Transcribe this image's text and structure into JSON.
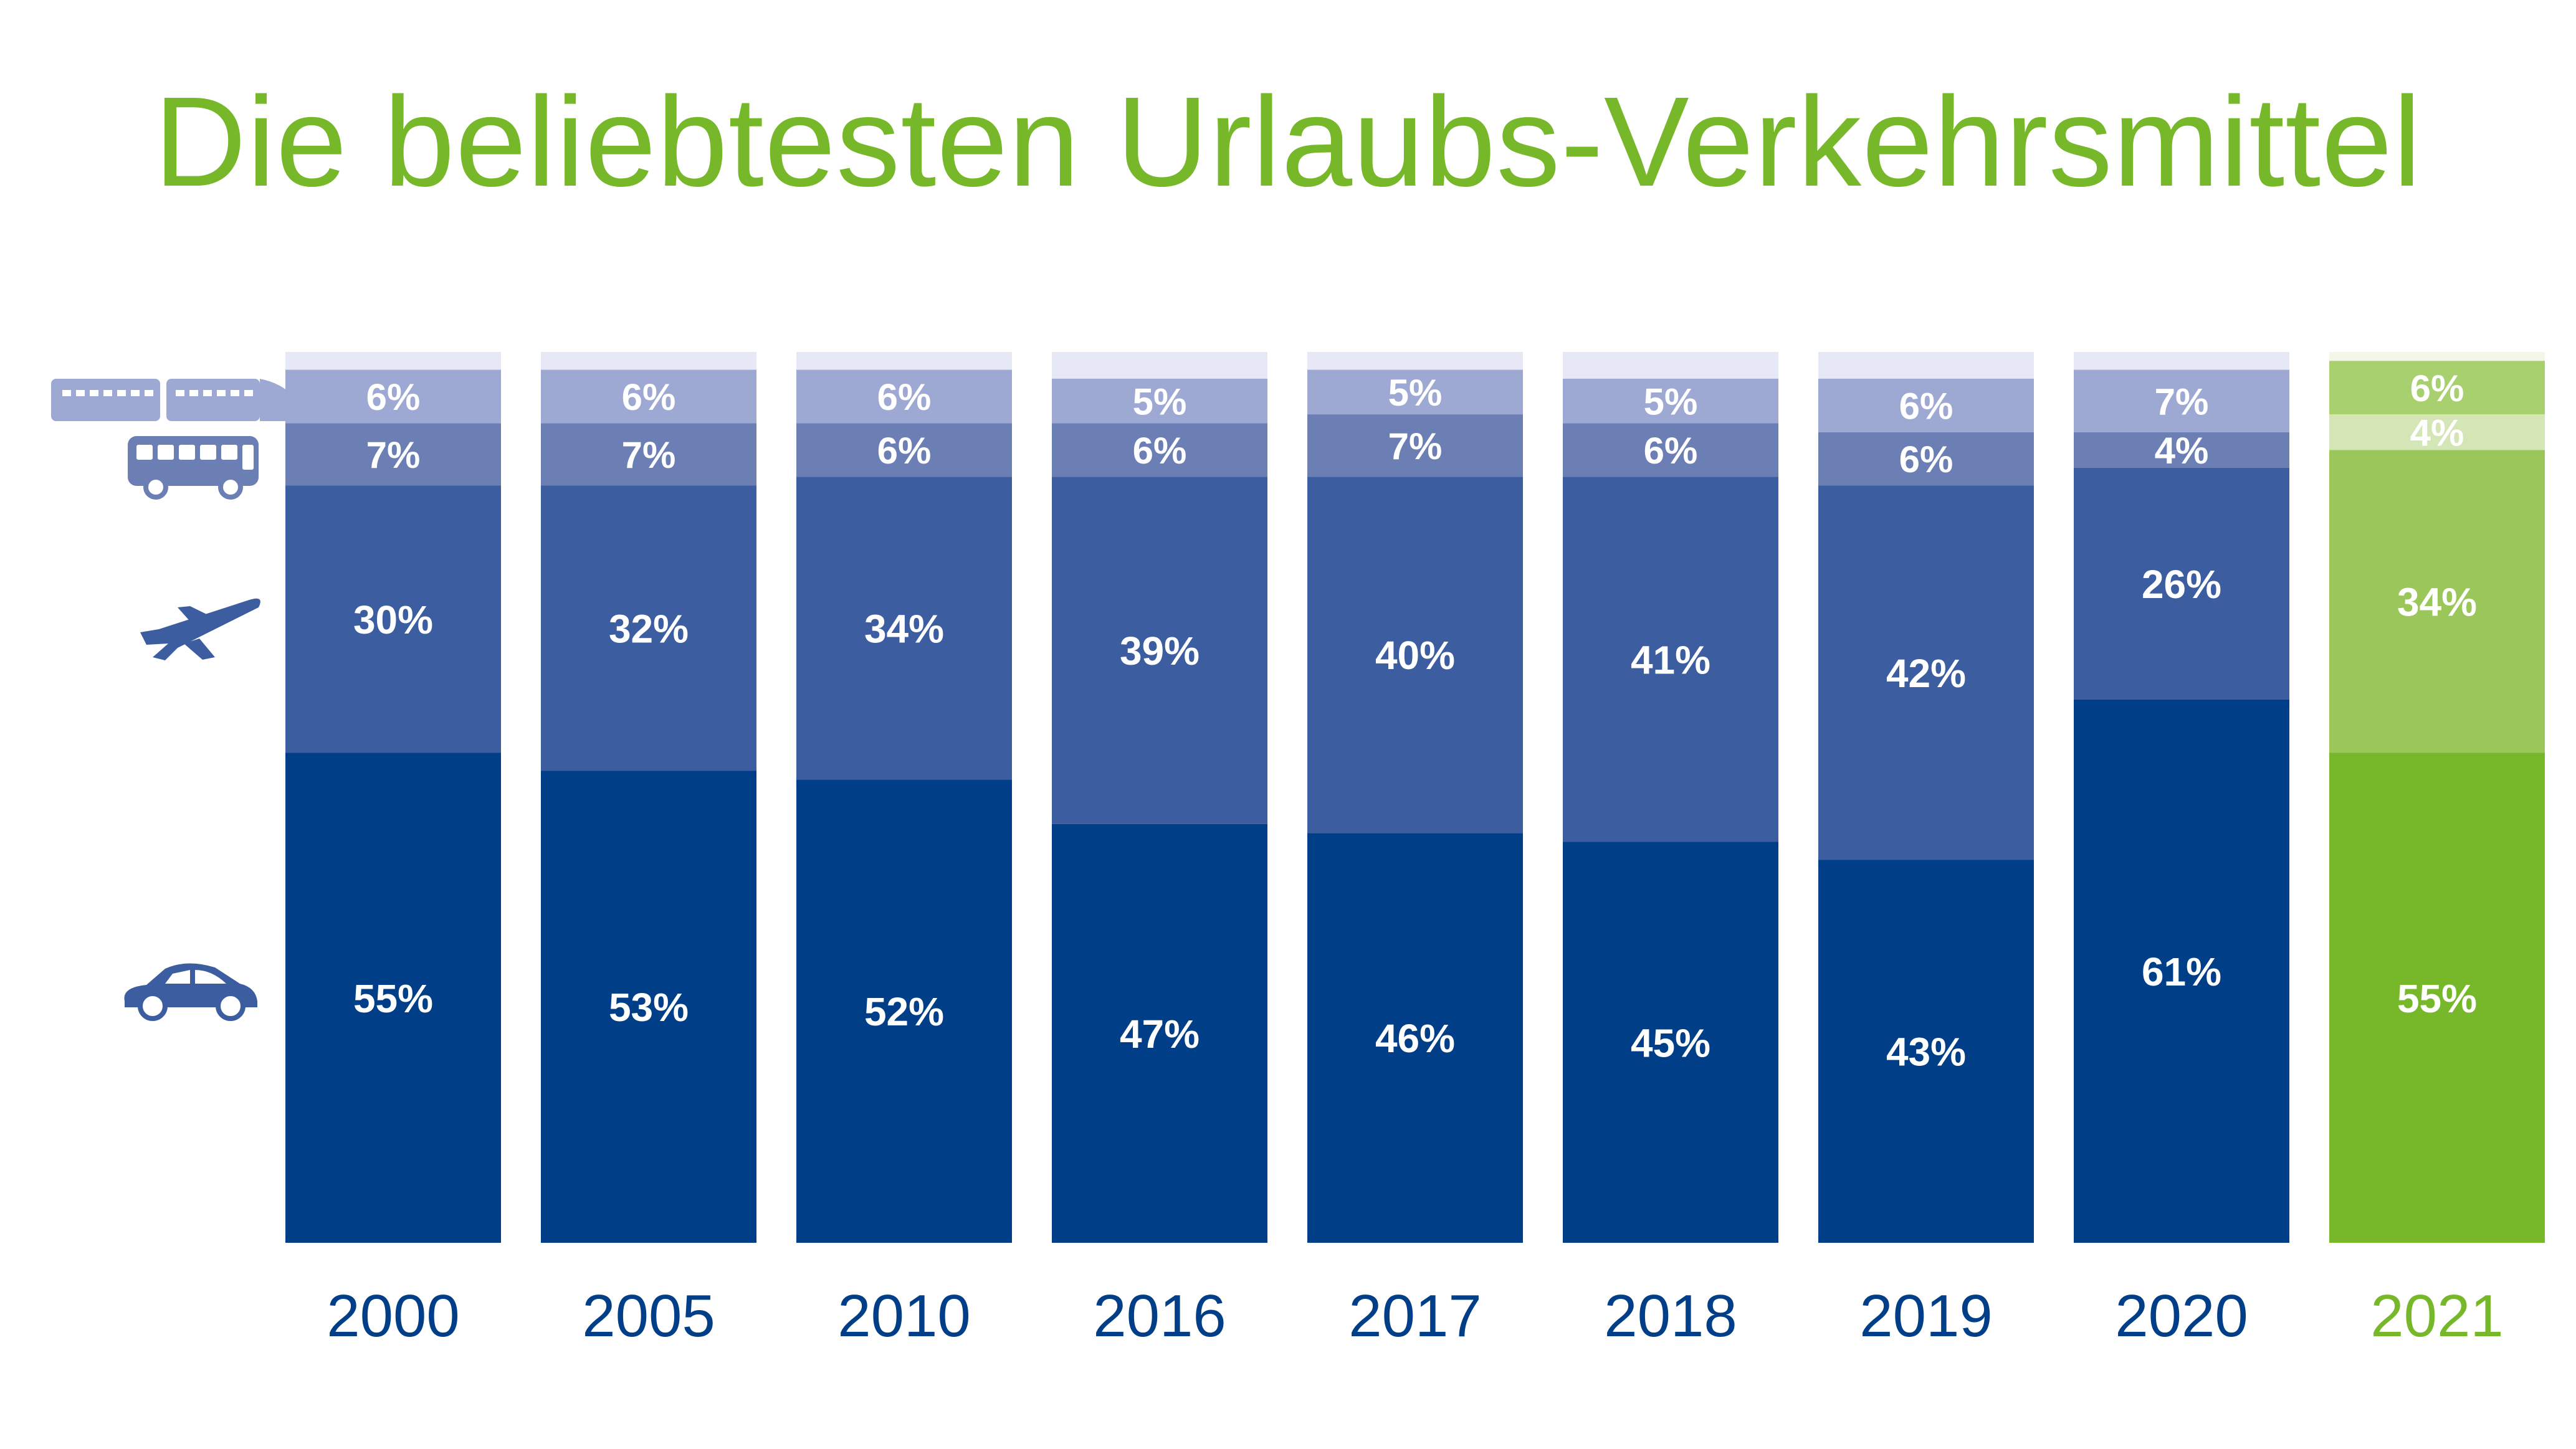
{
  "chart_data": {
    "type": "bar",
    "stacked": true,
    "percent_stacked": true,
    "title": "Die beliebtesten Urlaubs-Verkehrsmittel",
    "xlabel": "",
    "ylabel": "",
    "grid": false,
    "legend": "left-side icons",
    "categories": [
      "2000",
      "2005",
      "2010",
      "2016",
      "2017",
      "2018",
      "2019",
      "2020",
      "2021"
    ],
    "highlight_category": "2021",
    "series": [
      {
        "icon": "car-icon",
        "values": [
          55,
          53,
          52,
          47,
          46,
          45,
          43,
          61,
          55
        ],
        "labels": [
          "55%",
          "53%",
          "52%",
          "47%",
          "46%",
          "45%",
          "43%",
          "61%",
          "55%"
        ]
      },
      {
        "icon": "airplane-icon",
        "values": [
          30,
          32,
          34,
          39,
          40,
          41,
          42,
          26,
          34
        ],
        "labels": [
          "30%",
          "32%",
          "34%",
          "39%",
          "40%",
          "41%",
          "42%",
          "26%",
          "34%"
        ]
      },
      {
        "icon": "bus-icon",
        "values": [
          7,
          7,
          6,
          6,
          7,
          6,
          6,
          4,
          4
        ],
        "labels": [
          "7%",
          "7%",
          "6%",
          "6%",
          "7%",
          "6%",
          "6%",
          "4%",
          "4%"
        ]
      },
      {
        "icon": "train-icon",
        "values": [
          6,
          6,
          6,
          5,
          5,
          5,
          6,
          7,
          6
        ],
        "labels": [
          "6%",
          "6%",
          "6%",
          "5%",
          "5%",
          "5%",
          "6%",
          "7%",
          "6%"
        ]
      }
    ],
    "ylim": [
      0,
      100
    ],
    "colors": {
      "blue": [
        "#003f87",
        "#3c5da0",
        "#6c7fb5",
        "#9ea9d3",
        "#e6e8f6"
      ],
      "green": [
        "#76b82a",
        "#9bc659",
        "#d5e6b6",
        "#a9d06e",
        "#f2f7e8"
      ],
      "title": "#76b82a",
      "category_label": "#003f87",
      "highlight_label": "#76b82a",
      "icon": "#3c5da0",
      "icon_light": "#9ea9d3",
      "value_label": "#ffffff"
    }
  }
}
